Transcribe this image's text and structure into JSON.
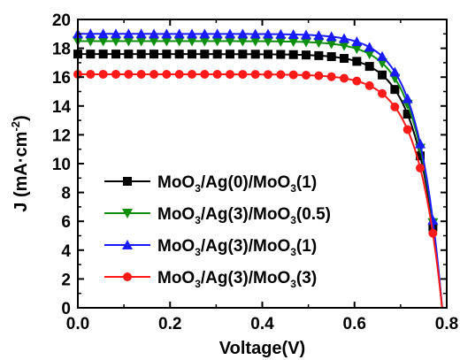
{
  "chart_data": {
    "type": "line",
    "title": "",
    "xlabel": "Voltage(V)",
    "ylabel": "J (mA·cm",
    "ylabel_sup": "-2",
    "ylabel_close": ")",
    "xlim": [
      0.0,
      0.8
    ],
    "ylim": [
      0,
      20
    ],
    "xticks": [
      0.0,
      0.2,
      0.4,
      0.6,
      0.8
    ],
    "yticks": [
      0,
      2,
      4,
      6,
      8,
      10,
      12,
      14,
      16,
      18,
      20
    ],
    "xtick_labels": [
      "0.0",
      "0.2",
      "0.4",
      "0.6",
      "0.8"
    ],
    "ytick_labels": [
      "0",
      "2",
      "4",
      "6",
      "8",
      "10",
      "12",
      "14",
      "16",
      "18",
      "20"
    ],
    "grid": false,
    "legend_position": "lower-left",
    "series": [
      {
        "name": "MoO3/Ag(0)/MoO3(1)",
        "legend_parts": [
          "MoO",
          "3",
          "/Ag(0)/MoO",
          "3",
          "(1)"
        ],
        "color": "#000000",
        "marker": "square",
        "jsc": 17.6,
        "a": 0.0095,
        "vt": 0.052,
        "voc": 0.79,
        "pts": 29
      },
      {
        "name": "MoO3/Ag(3)/MoO3(0.5)",
        "legend_parts": [
          "MoO",
          "3",
          "/Ag(3)/MoO",
          "3",
          "(0.5)"
        ],
        "color": "#0e8f0e",
        "marker": "triangle-down",
        "jsc": 18.5,
        "a": 0.0095,
        "vt": 0.052,
        "voc": 0.79,
        "pts": 29
      },
      {
        "name": "MoO3/Ag(3)/MoO3(1)",
        "legend_parts": [
          "MoO",
          "3",
          "/Ag(3)/MoO",
          "3",
          "(1)"
        ],
        "color": "#1a1aff",
        "marker": "triangle-up",
        "jsc": 19.0,
        "a": 0.005,
        "vt": 0.052,
        "voc": 0.79,
        "pts": 29
      },
      {
        "name": "MoO3/Ag(3)/MoO3(3)",
        "legend_parts": [
          "MoO",
          "3",
          "/Ag(3)/MoO",
          "3",
          "(3)"
        ],
        "color": "#ff1a1a",
        "marker": "circle",
        "jsc": 16.2,
        "a": 0.016,
        "vt": 0.052,
        "voc": 0.79,
        "pts": 29
      }
    ]
  }
}
